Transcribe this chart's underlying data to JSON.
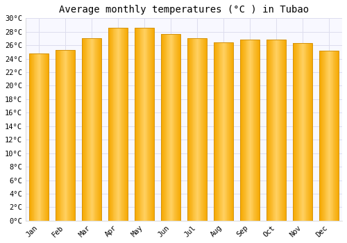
{
  "title": "Average monthly temperatures (°C ) in Tubao",
  "months": [
    "Jan",
    "Feb",
    "Mar",
    "Apr",
    "May",
    "Jun",
    "Jul",
    "Aug",
    "Sep",
    "Oct",
    "Nov",
    "Dec"
  ],
  "values": [
    24.8,
    25.3,
    27.0,
    28.6,
    28.6,
    27.7,
    27.0,
    26.4,
    26.8,
    26.8,
    26.3,
    25.2
  ],
  "bar_color_left": "#F5A800",
  "bar_color_center": "#FFD060",
  "bar_color_right": "#F5A800",
  "bar_edge_color": "#D4920A",
  "background_color": "#FFFFFF",
  "plot_bg_color": "#F8F8FF",
  "grid_color": "#DDDDEE",
  "ylim": [
    0,
    30
  ],
  "ytick_step": 2,
  "title_fontsize": 10,
  "tick_fontsize": 7.5,
  "font_family": "monospace"
}
